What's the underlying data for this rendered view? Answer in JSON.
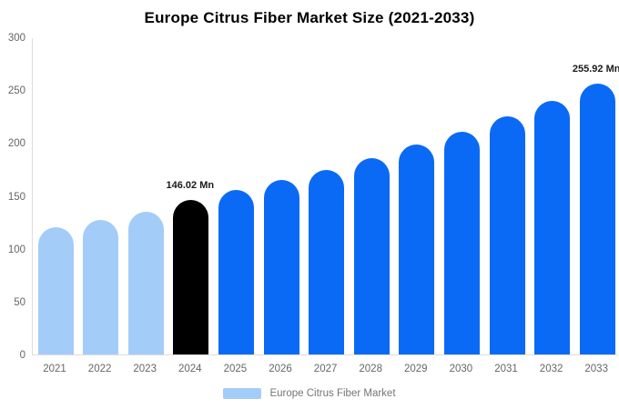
{
  "title": "Europe Citrus Fiber Market Size (2021-2033)",
  "legend": {
    "label": "Europe Citrus Fiber Market"
  },
  "colors": {
    "historical_bar": "#a4ccf8",
    "current_year_bar": "#000000",
    "forecast_bar": "#0a6af5",
    "axis_line": "#dddddd",
    "tick_text": "#666666",
    "data_label_text": "#1a1a1a",
    "legend_text": "#757575",
    "title_text": "#000000",
    "background": "#ffffff"
  },
  "chart_data": {
    "type": "bar",
    "title": "Europe Citrus Fiber Market Size (2021-2033)",
    "xlabel": "",
    "ylabel": "",
    "unit": "Mn",
    "ylim": [
      0,
      300
    ],
    "yticks": [
      0,
      50,
      100,
      150,
      200,
      250,
      300
    ],
    "grid": false,
    "legend_position": "bottom",
    "categories": [
      "2021",
      "2022",
      "2023",
      "2024",
      "2025",
      "2026",
      "2027",
      "2028",
      "2029",
      "2030",
      "2031",
      "2032",
      "2033"
    ],
    "values": [
      120,
      127.5,
      135,
      146.02,
      155.4,
      165,
      174.8,
      185.8,
      198.4,
      210.8,
      225.2,
      239.9,
      255.92
    ],
    "series_name": "Europe Citrus Fiber Market",
    "color_roles": [
      "historical",
      "historical",
      "historical",
      "current",
      "forecast",
      "forecast",
      "forecast",
      "forecast",
      "forecast",
      "forecast",
      "forecast",
      "forecast",
      "forecast"
    ],
    "point_labels": {
      "2024": "146.02 Mn",
      "2033": "255.92 Mn"
    }
  }
}
